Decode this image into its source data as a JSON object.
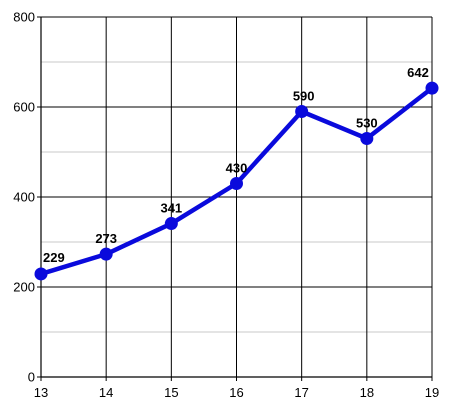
{
  "chart_data": {
    "type": "line",
    "title": "",
    "xlabel": "",
    "ylabel": "",
    "x": [
      13,
      14,
      15,
      16,
      17,
      18,
      19
    ],
    "series": [
      {
        "values": [
          229,
          273,
          341,
          430,
          590,
          530,
          642
        ],
        "color": "#0a0adc"
      }
    ],
    "xlim": [
      13,
      19
    ],
    "ylim": [
      0,
      800
    ],
    "x_ticks": [
      "13",
      "14",
      "15",
      "16",
      "17",
      "18",
      "19"
    ],
    "y_ticks": [
      "0",
      "200",
      "400",
      "600",
      "800"
    ],
    "y_tick_values": [
      0,
      200,
      400,
      600,
      800
    ],
    "y_minor_values": [
      100,
      300,
      500,
      700
    ],
    "grid": true,
    "legend": "none",
    "data_labels": [
      "229",
      "273",
      "341",
      "430",
      "590",
      "530",
      "642"
    ],
    "colors": {
      "line": "#0a0adc",
      "major_grid": "#000000",
      "minor_grid": "#c8c8c8",
      "axis": "#000000"
    }
  }
}
